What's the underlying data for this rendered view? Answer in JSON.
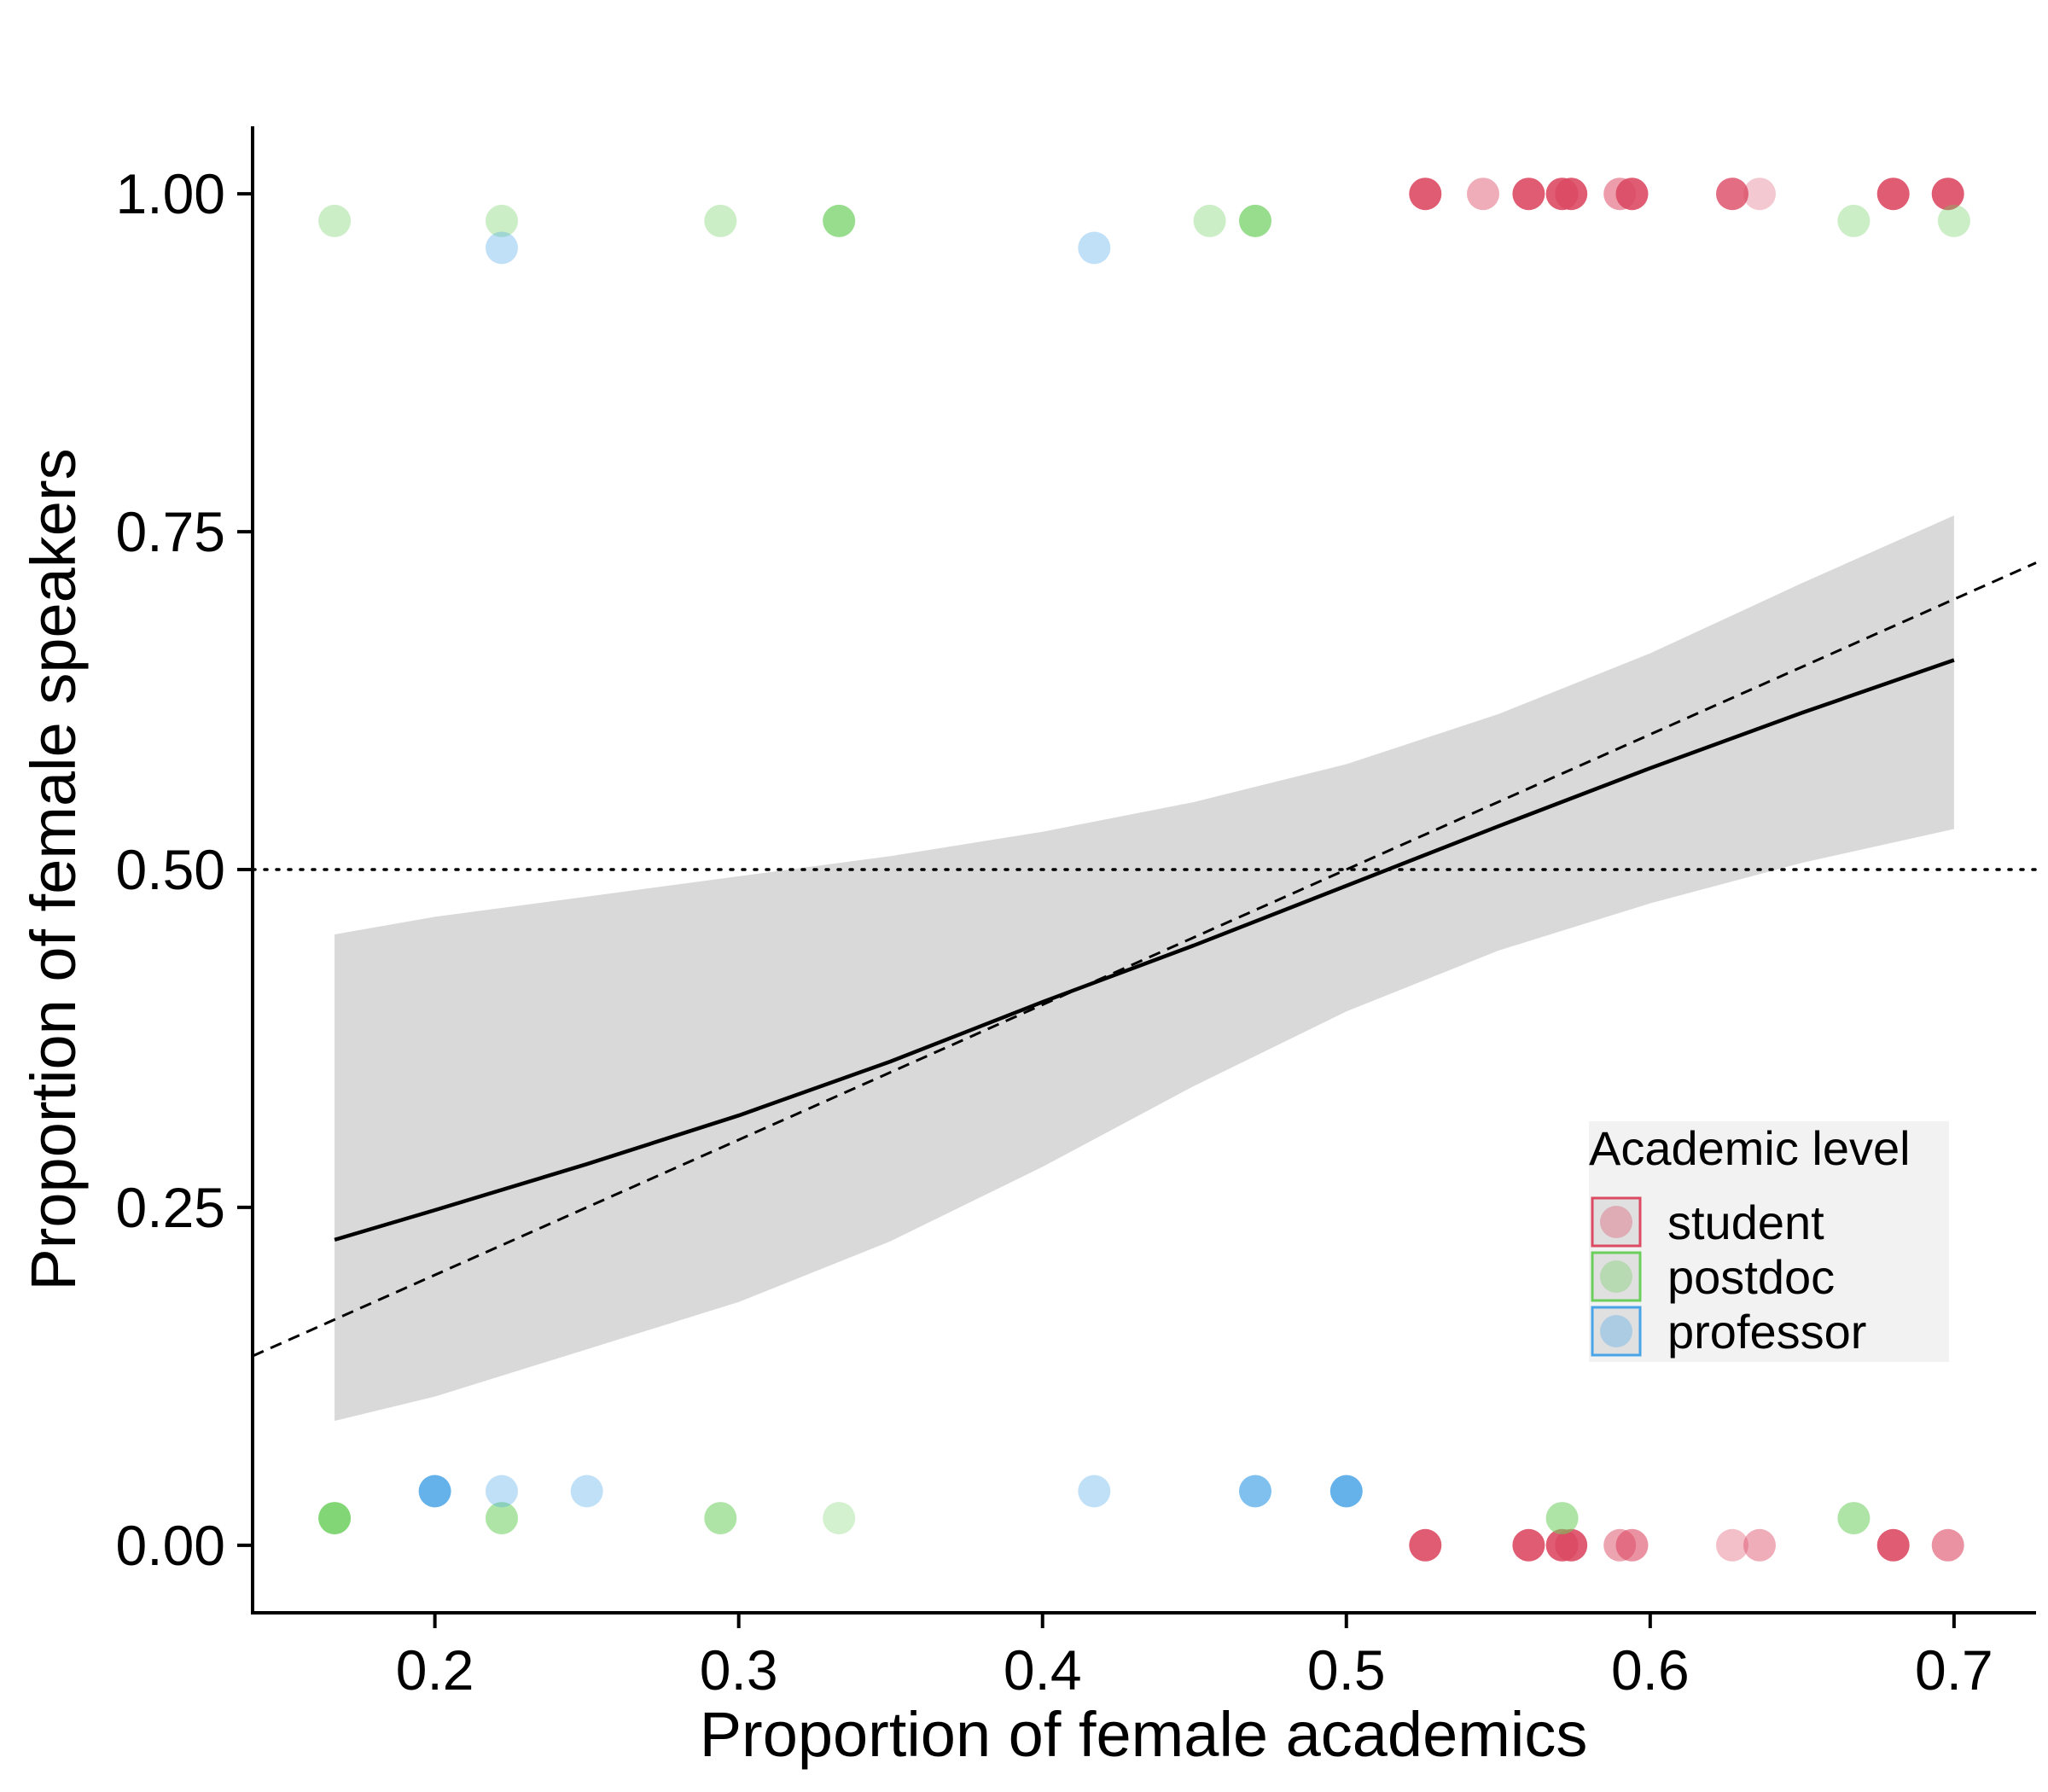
{
  "chart_data": {
    "type": "scatter",
    "xlabel": "Proportion of female academics",
    "ylabel": "Proportion of female speakers",
    "xlim": [
      0.14,
      0.727
    ],
    "ylim": [
      -0.05,
      1.05
    ],
    "x_ticks": [
      0.2,
      0.3,
      0.4,
      0.5,
      0.6,
      0.7
    ],
    "x_tick_labels": [
      "0.2",
      "0.3",
      "0.4",
      "0.5",
      "0.6",
      "0.7"
    ],
    "y_ticks": [
      0,
      0.25,
      0.5,
      0.75,
      1.0
    ],
    "y_tick_labels": [
      "0.00",
      "0.25",
      "0.50",
      "0.75",
      "1.00"
    ],
    "grid": false,
    "colors": {
      "student": "#dc4a64",
      "postdoc": "#6ccf5d",
      "professor": "#4aa5e8"
    },
    "legend": {
      "title": "Academic level",
      "position": "bottom-right",
      "entries": [
        "student",
        "postdoc",
        "professor"
      ]
    },
    "reference_lines": [
      {
        "kind": "identity-dashed",
        "slope": 1,
        "intercept": 0
      },
      {
        "kind": "horizontal-dotted",
        "y": 0.5
      }
    ],
    "fit_line": {
      "x": [
        0.167,
        0.2,
        0.25,
        0.3,
        0.35,
        0.4,
        0.45,
        0.5,
        0.55,
        0.6,
        0.65,
        0.7
      ],
      "y": [
        0.226,
        0.248,
        0.282,
        0.318,
        0.358,
        0.402,
        0.444,
        0.488,
        0.532,
        0.575,
        0.616,
        0.655
      ]
    },
    "confidence_band": {
      "x": [
        0.167,
        0.2,
        0.25,
        0.3,
        0.35,
        0.4,
        0.45,
        0.5,
        0.55,
        0.6,
        0.65,
        0.7
      ],
      "lower": [
        0.092,
        0.11,
        0.145,
        0.18,
        0.225,
        0.28,
        0.34,
        0.395,
        0.44,
        0.475,
        0.505,
        0.53
      ],
      "upper": [
        0.452,
        0.465,
        0.48,
        0.495,
        0.51,
        0.528,
        0.55,
        0.578,
        0.615,
        0.66,
        0.712,
        0.762
      ]
    },
    "series": [
      {
        "name": "student",
        "points": [
          {
            "x": 0.526,
            "y": 1.0,
            "a": 0.9
          },
          {
            "x": 0.545,
            "y": 1.0,
            "a": 0.45
          },
          {
            "x": 0.56,
            "y": 1.0,
            "a": 0.9
          },
          {
            "x": 0.571,
            "y": 1.0,
            "a": 0.9
          },
          {
            "x": 0.574,
            "y": 1.0,
            "a": 0.9
          },
          {
            "x": 0.59,
            "y": 1.0,
            "a": 0.55
          },
          {
            "x": 0.594,
            "y": 1.0,
            "a": 0.9
          },
          {
            "x": 0.627,
            "y": 1.0,
            "a": 0.8
          },
          {
            "x": 0.636,
            "y": 1.0,
            "a": 0.3
          },
          {
            "x": 0.68,
            "y": 1.0,
            "a": 0.9
          },
          {
            "x": 0.698,
            "y": 1.0,
            "a": 0.9
          },
          {
            "x": 0.526,
            "y": 0.0,
            "a": 0.9
          },
          {
            "x": 0.56,
            "y": 0.0,
            "a": 0.9
          },
          {
            "x": 0.571,
            "y": 0.0,
            "a": 0.9
          },
          {
            "x": 0.574,
            "y": 0.0,
            "a": 0.9
          },
          {
            "x": 0.59,
            "y": 0.0,
            "a": 0.5
          },
          {
            "x": 0.594,
            "y": 0.0,
            "a": 0.6
          },
          {
            "x": 0.627,
            "y": 0.0,
            "a": 0.35
          },
          {
            "x": 0.636,
            "y": 0.0,
            "a": 0.45
          },
          {
            "x": 0.68,
            "y": 0.0,
            "a": 0.9
          },
          {
            "x": 0.698,
            "y": 0.0,
            "a": 0.6
          }
        ]
      },
      {
        "name": "postdoc",
        "points": [
          {
            "x": 0.167,
            "y": 0.98,
            "a": 0.35
          },
          {
            "x": 0.222,
            "y": 0.98,
            "a": 0.35
          },
          {
            "x": 0.294,
            "y": 0.98,
            "a": 0.35
          },
          {
            "x": 0.333,
            "y": 0.98,
            "a": 0.7
          },
          {
            "x": 0.455,
            "y": 0.98,
            "a": 0.35
          },
          {
            "x": 0.47,
            "y": 0.98,
            "a": 0.7
          },
          {
            "x": 0.667,
            "y": 0.98,
            "a": 0.35
          },
          {
            "x": 0.7,
            "y": 0.98,
            "a": 0.35
          },
          {
            "x": 0.167,
            "y": 0.02,
            "a": 0.85
          },
          {
            "x": 0.222,
            "y": 0.02,
            "a": 0.55
          },
          {
            "x": 0.294,
            "y": 0.02,
            "a": 0.55
          },
          {
            "x": 0.333,
            "y": 0.02,
            "a": 0.3
          },
          {
            "x": 0.571,
            "y": 0.02,
            "a": 0.55
          },
          {
            "x": 0.667,
            "y": 0.02,
            "a": 0.55
          }
        ]
      },
      {
        "name": "professor",
        "points": [
          {
            "x": 0.222,
            "y": 0.96,
            "a": 0.35
          },
          {
            "x": 0.417,
            "y": 0.96,
            "a": 0.35
          },
          {
            "x": 0.2,
            "y": 0.04,
            "a": 0.85
          },
          {
            "x": 0.222,
            "y": 0.04,
            "a": 0.35
          },
          {
            "x": 0.25,
            "y": 0.04,
            "a": 0.35
          },
          {
            "x": 0.417,
            "y": 0.04,
            "a": 0.35
          },
          {
            "x": 0.47,
            "y": 0.04,
            "a": 0.7
          },
          {
            "x": 0.5,
            "y": 0.04,
            "a": 0.85
          }
        ]
      }
    ]
  }
}
